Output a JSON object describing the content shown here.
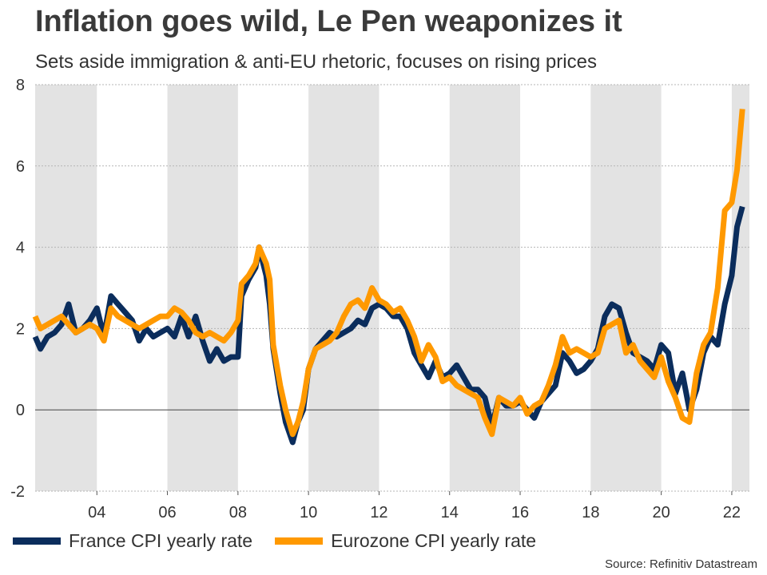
{
  "title": "Inflation goes wild, Le Pen weaponizes it",
  "subtitle": "Sets aside immigration & anti-EU rhetoric, focuses on rising prices",
  "source": "Source: Refinitiv Datastream",
  "colors": {
    "france": "#0b2d5c",
    "eurozone": "#ff9900",
    "band": "#e3e3e3",
    "grid": "#b5b5b5",
    "zero": "#444444"
  },
  "chart_data": {
    "type": "line",
    "title": "Inflation goes wild, Le Pen weaponizes it",
    "subtitle": "Sets aside immigration & anti-EU rhetoric, focuses on rising prices",
    "xlabel": "",
    "ylabel": "",
    "xlim": [
      2002.25,
      2022.5
    ],
    "ylim": [
      -2,
      8
    ],
    "y_ticks": [
      -2,
      0,
      2,
      4,
      6,
      8
    ],
    "y_tick_labels": [
      "-2",
      "0",
      "2",
      "4",
      "6",
      "8"
    ],
    "x_ticks": [
      2004,
      2006,
      2008,
      2010,
      2012,
      2014,
      2016,
      2018,
      2020,
      2022
    ],
    "x_tick_labels": [
      "04",
      "06",
      "08",
      "10",
      "12",
      "14",
      "16",
      "18",
      "20",
      "22"
    ],
    "shaded_bands": [
      [
        2002.25,
        2004
      ],
      [
        2006,
        2008
      ],
      [
        2010,
        2012
      ],
      [
        2014,
        2016
      ],
      [
        2018,
        2020
      ],
      [
        2022,
        2022.5
      ]
    ],
    "grid": "horizontal dotted",
    "legend_position": "bottom",
    "series": [
      {
        "name": "France CPI yearly rate",
        "color": "#0b2d5c",
        "points": [
          [
            2002.25,
            1.8
          ],
          [
            2002.4,
            1.5
          ],
          [
            2002.6,
            1.8
          ],
          [
            2002.8,
            1.9
          ],
          [
            2003.0,
            2.1
          ],
          [
            2003.2,
            2.6
          ],
          [
            2003.4,
            1.9
          ],
          [
            2003.6,
            2.0
          ],
          [
            2003.8,
            2.2
          ],
          [
            2004.0,
            2.5
          ],
          [
            2004.2,
            1.8
          ],
          [
            2004.4,
            2.8
          ],
          [
            2004.6,
            2.6
          ],
          [
            2004.8,
            2.4
          ],
          [
            2005.0,
            2.2
          ],
          [
            2005.2,
            1.7
          ],
          [
            2005.4,
            2.0
          ],
          [
            2005.6,
            1.8
          ],
          [
            2005.8,
            1.9
          ],
          [
            2006.0,
            2.0
          ],
          [
            2006.2,
            1.8
          ],
          [
            2006.4,
            2.3
          ],
          [
            2006.6,
            1.8
          ],
          [
            2006.8,
            2.3
          ],
          [
            2007.0,
            1.7
          ],
          [
            2007.2,
            1.2
          ],
          [
            2007.4,
            1.5
          ],
          [
            2007.6,
            1.2
          ],
          [
            2007.8,
            1.3
          ],
          [
            2008.0,
            1.3
          ],
          [
            2008.1,
            2.8
          ],
          [
            2008.3,
            3.2
          ],
          [
            2008.5,
            3.5
          ],
          [
            2008.6,
            4.0
          ],
          [
            2008.8,
            3.3
          ],
          [
            2008.9,
            2.6
          ],
          [
            2009.0,
            1.5
          ],
          [
            2009.2,
            0.4
          ],
          [
            2009.35,
            -0.3
          ],
          [
            2009.55,
            -0.8
          ],
          [
            2009.7,
            -0.3
          ],
          [
            2009.85,
            0.0
          ],
          [
            2010.0,
            1.0
          ],
          [
            2010.2,
            1.5
          ],
          [
            2010.4,
            1.7
          ],
          [
            2010.6,
            1.9
          ],
          [
            2010.8,
            1.8
          ],
          [
            2011.0,
            1.9
          ],
          [
            2011.2,
            2.0
          ],
          [
            2011.4,
            2.2
          ],
          [
            2011.6,
            2.1
          ],
          [
            2011.8,
            2.5
          ],
          [
            2012.0,
            2.6
          ],
          [
            2012.2,
            2.5
          ],
          [
            2012.4,
            2.3
          ],
          [
            2012.6,
            2.3
          ],
          [
            2012.8,
            2.0
          ],
          [
            2013.0,
            1.4
          ],
          [
            2013.2,
            1.1
          ],
          [
            2013.4,
            0.8
          ],
          [
            2013.6,
            1.2
          ],
          [
            2013.8,
            0.8
          ],
          [
            2014.0,
            0.9
          ],
          [
            2014.2,
            1.1
          ],
          [
            2014.4,
            0.8
          ],
          [
            2014.6,
            0.5
          ],
          [
            2014.8,
            0.5
          ],
          [
            2015.0,
            0.3
          ],
          [
            2015.2,
            -0.4
          ],
          [
            2015.4,
            0.3
          ],
          [
            2015.6,
            0.1
          ],
          [
            2015.8,
            0.1
          ],
          [
            2016.0,
            0.2
          ],
          [
            2016.2,
            0.0
          ],
          [
            2016.4,
            -0.2
          ],
          [
            2016.6,
            0.2
          ],
          [
            2016.8,
            0.4
          ],
          [
            2017.0,
            0.6
          ],
          [
            2017.2,
            1.4
          ],
          [
            2017.4,
            1.2
          ],
          [
            2017.6,
            0.9
          ],
          [
            2017.8,
            1.0
          ],
          [
            2018.0,
            1.2
          ],
          [
            2018.2,
            1.5
          ],
          [
            2018.4,
            2.3
          ],
          [
            2018.6,
            2.6
          ],
          [
            2018.8,
            2.5
          ],
          [
            2019.0,
            1.9
          ],
          [
            2019.2,
            1.4
          ],
          [
            2019.4,
            1.3
          ],
          [
            2019.6,
            1.2
          ],
          [
            2019.8,
            1.0
          ],
          [
            2020.0,
            1.6
          ],
          [
            2020.2,
            1.4
          ],
          [
            2020.4,
            0.4
          ],
          [
            2020.6,
            0.9
          ],
          [
            2020.8,
            0.0
          ],
          [
            2021.0,
            0.5
          ],
          [
            2021.2,
            1.4
          ],
          [
            2021.4,
            1.8
          ],
          [
            2021.6,
            1.6
          ],
          [
            2021.8,
            2.6
          ],
          [
            2022.0,
            3.3
          ],
          [
            2022.15,
            4.5
          ],
          [
            2022.3,
            5.0
          ]
        ]
      },
      {
        "name": "Eurozone CPI yearly rate",
        "color": "#ff9900",
        "points": [
          [
            2002.25,
            2.3
          ],
          [
            2002.4,
            2.0
          ],
          [
            2002.6,
            2.1
          ],
          [
            2002.8,
            2.2
          ],
          [
            2003.0,
            2.3
          ],
          [
            2003.2,
            2.1
          ],
          [
            2003.4,
            1.9
          ],
          [
            2003.6,
            2.0
          ],
          [
            2003.8,
            2.1
          ],
          [
            2004.0,
            2.0
          ],
          [
            2004.2,
            1.7
          ],
          [
            2004.4,
            2.5
          ],
          [
            2004.6,
            2.3
          ],
          [
            2004.8,
            2.2
          ],
          [
            2005.0,
            2.1
          ],
          [
            2005.2,
            2.0
          ],
          [
            2005.4,
            2.1
          ],
          [
            2005.6,
            2.2
          ],
          [
            2005.8,
            2.3
          ],
          [
            2006.0,
            2.3
          ],
          [
            2006.2,
            2.5
          ],
          [
            2006.4,
            2.4
          ],
          [
            2006.6,
            2.2
          ],
          [
            2006.8,
            1.9
          ],
          [
            2007.0,
            1.8
          ],
          [
            2007.2,
            1.9
          ],
          [
            2007.4,
            1.8
          ],
          [
            2007.6,
            1.7
          ],
          [
            2007.8,
            1.9
          ],
          [
            2008.0,
            2.2
          ],
          [
            2008.1,
            3.1
          ],
          [
            2008.3,
            3.3
          ],
          [
            2008.5,
            3.6
          ],
          [
            2008.6,
            4.0
          ],
          [
            2008.8,
            3.6
          ],
          [
            2008.9,
            3.2
          ],
          [
            2009.0,
            1.6
          ],
          [
            2009.2,
            0.6
          ],
          [
            2009.35,
            0.0
          ],
          [
            2009.55,
            -0.6
          ],
          [
            2009.7,
            -0.3
          ],
          [
            2009.85,
            0.2
          ],
          [
            2010.0,
            1.0
          ],
          [
            2010.2,
            1.5
          ],
          [
            2010.4,
            1.6
          ],
          [
            2010.6,
            1.7
          ],
          [
            2010.8,
            1.9
          ],
          [
            2011.0,
            2.3
          ],
          [
            2011.2,
            2.6
          ],
          [
            2011.4,
            2.7
          ],
          [
            2011.6,
            2.5
          ],
          [
            2011.8,
            3.0
          ],
          [
            2012.0,
            2.7
          ],
          [
            2012.2,
            2.6
          ],
          [
            2012.4,
            2.4
          ],
          [
            2012.6,
            2.5
          ],
          [
            2012.8,
            2.2
          ],
          [
            2013.0,
            1.8
          ],
          [
            2013.2,
            1.2
          ],
          [
            2013.4,
            1.6
          ],
          [
            2013.6,
            1.3
          ],
          [
            2013.8,
            0.7
          ],
          [
            2014.0,
            0.8
          ],
          [
            2014.2,
            0.6
          ],
          [
            2014.4,
            0.5
          ],
          [
            2014.6,
            0.4
          ],
          [
            2014.8,
            0.3
          ],
          [
            2015.0,
            -0.2
          ],
          [
            2015.2,
            -0.6
          ],
          [
            2015.4,
            0.3
          ],
          [
            2015.6,
            0.2
          ],
          [
            2015.8,
            0.1
          ],
          [
            2016.0,
            0.3
          ],
          [
            2016.2,
            -0.1
          ],
          [
            2016.4,
            0.1
          ],
          [
            2016.6,
            0.2
          ],
          [
            2016.8,
            0.6
          ],
          [
            2017.0,
            1.1
          ],
          [
            2017.2,
            1.8
          ],
          [
            2017.4,
            1.4
          ],
          [
            2017.6,
            1.5
          ],
          [
            2017.8,
            1.4
          ],
          [
            2018.0,
            1.3
          ],
          [
            2018.2,
            1.4
          ],
          [
            2018.4,
            2.0
          ],
          [
            2018.6,
            2.1
          ],
          [
            2018.8,
            2.2
          ],
          [
            2019.0,
            1.4
          ],
          [
            2019.2,
            1.6
          ],
          [
            2019.4,
            1.2
          ],
          [
            2019.6,
            1.0
          ],
          [
            2019.8,
            0.8
          ],
          [
            2020.0,
            1.3
          ],
          [
            2020.2,
            0.7
          ],
          [
            2020.4,
            0.3
          ],
          [
            2020.6,
            -0.2
          ],
          [
            2020.8,
            -0.3
          ],
          [
            2021.0,
            0.9
          ],
          [
            2021.2,
            1.6
          ],
          [
            2021.4,
            1.9
          ],
          [
            2021.6,
            3.0
          ],
          [
            2021.8,
            4.9
          ],
          [
            2022.0,
            5.1
          ],
          [
            2022.15,
            5.9
          ],
          [
            2022.3,
            7.4
          ]
        ]
      }
    ]
  }
}
